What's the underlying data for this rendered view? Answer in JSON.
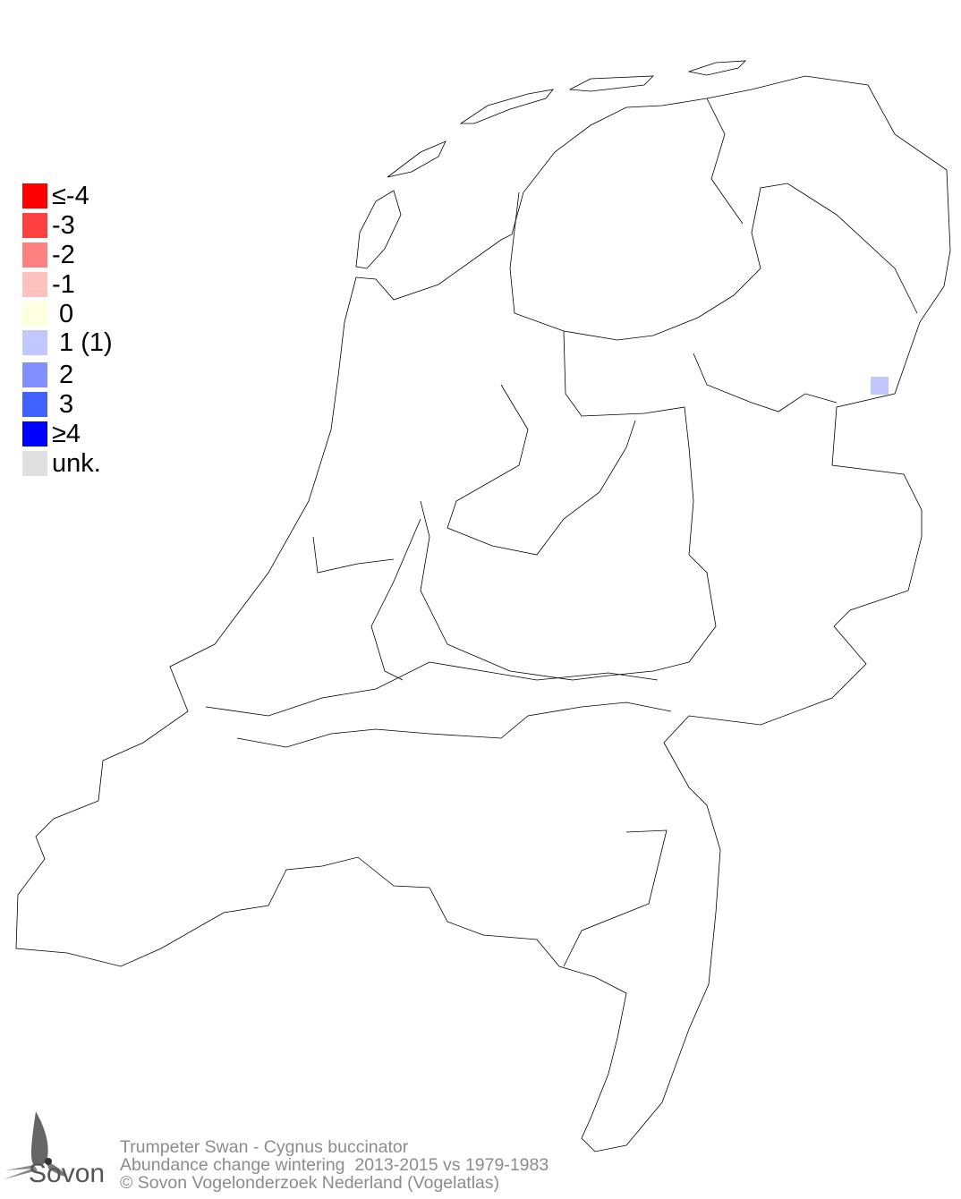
{
  "legend": {
    "items": [
      {
        "label": "≤-4",
        "color": "#ff0000"
      },
      {
        "label": "-3",
        "color": "#ff4040"
      },
      {
        "label": "-2",
        "color": "#ff8080"
      },
      {
        "label": "-1",
        "color": "#ffc0c0"
      },
      {
        "label": " 0",
        "color": "#ffffe0"
      },
      {
        "label": " 1 (1)",
        "color": "#c0c8ff"
      },
      {
        "label": " 2",
        "color": "#8090ff"
      },
      {
        "label": " 3",
        "color": "#4060ff"
      },
      {
        "label": "≥4",
        "color": "#0000ff"
      },
      {
        "label": "unk.",
        "color": "#e0e0e0"
      }
    ]
  },
  "map": {
    "region": "Netherlands",
    "observations": [
      {
        "class": "1",
        "color": "#c0c8ff"
      }
    ]
  },
  "footer": {
    "species": "Trumpeter Swan - Cygnus buccinator",
    "subtitle": "Abundance change wintering  2013-2015 vs 1979-1983",
    "copyright": "© Sovon Vogelonderzoek Nederland (Vogelatlas)"
  },
  "logo": {
    "text": "Sovon"
  }
}
